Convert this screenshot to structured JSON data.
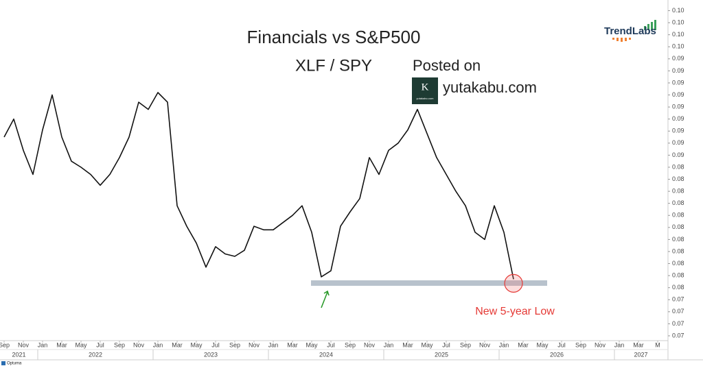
{
  "chart_data": {
    "type": "line",
    "title": "Financials vs S&P500",
    "subtitle": "XLF / SPY",
    "watermark": {
      "prefix": "Posted on",
      "site": "yutakabu.com",
      "logo_mark": "K",
      "logo_caption": "yutakabu.com"
    },
    "brand": "TrendLabs",
    "footer": "Optuma",
    "annotation": "New 5-year Low",
    "x": [
      "2021-09",
      "2021-10",
      "2021-11",
      "2021-12",
      "2022-01",
      "2022-02",
      "2022-03",
      "2022-04",
      "2022-05",
      "2022-06",
      "2022-07",
      "2022-08",
      "2022-09",
      "2022-10",
      "2022-11",
      "2022-12",
      "2023-01",
      "2023-02",
      "2023-03",
      "2023-04",
      "2023-05",
      "2023-06",
      "2023-07",
      "2023-08",
      "2023-09",
      "2023-10",
      "2023-11",
      "2023-12",
      "2024-01",
      "2024-02",
      "2024-03",
      "2024-04",
      "2024-05",
      "2024-06",
      "2024-07",
      "2024-08",
      "2024-09",
      "2024-10",
      "2024-11",
      "2024-12",
      "2025-01",
      "2025-02",
      "2025-03",
      "2025-04",
      "2025-05",
      "2025-06",
      "2025-07",
      "2025-08",
      "2025-09",
      "2025-10",
      "2025-11",
      "2025-12",
      "2026-01",
      "2026-02"
    ],
    "series": [
      {
        "name": "XLF / SPY",
        "color": "#111111",
        "values": [
          0.0875,
          0.089,
          0.0864,
          0.0844,
          0.0881,
          0.091,
          0.0875,
          0.0855,
          0.085,
          0.0844,
          0.0835,
          0.0844,
          0.0858,
          0.0875,
          0.0904,
          0.0898,
          0.0912,
          0.0904,
          0.0818,
          0.0801,
          0.0787,
          0.0767,
          0.0784,
          0.0778,
          0.0776,
          0.0781,
          0.0801,
          0.0798,
          0.0798,
          0.0804,
          0.081,
          0.0818,
          0.0796,
          0.0759,
          0.0764,
          0.0801,
          0.0813,
          0.0824,
          0.0858,
          0.0844,
          0.0864,
          0.087,
          0.0881,
          0.0898,
          0.0878,
          0.0858,
          0.0844,
          0.083,
          0.0818,
          0.0796,
          0.079,
          0.0818,
          0.0796,
          0.0757
        ]
      }
    ],
    "xlim": [
      "2021-09",
      "2027-06"
    ],
    "xticks": [
      {
        "value": "2021-09",
        "label": "Sep"
      },
      {
        "value": "2021-11",
        "label": "Nov"
      },
      {
        "value": "2022-01",
        "label": "Jan"
      },
      {
        "value": "2022-03",
        "label": "Mar"
      },
      {
        "value": "2022-05",
        "label": "May"
      },
      {
        "value": "2022-07",
        "label": "Jul"
      },
      {
        "value": "2022-09",
        "label": "Sep"
      },
      {
        "value": "2022-11",
        "label": "Nov"
      },
      {
        "value": "2023-01",
        "label": "Jan"
      },
      {
        "value": "2023-03",
        "label": "Mar"
      },
      {
        "value": "2023-05",
        "label": "May"
      },
      {
        "value": "2023-07",
        "label": "Jul"
      },
      {
        "value": "2023-09",
        "label": "Sep"
      },
      {
        "value": "2023-11",
        "label": "Nov"
      },
      {
        "value": "2024-01",
        "label": "Jan"
      },
      {
        "value": "2024-03",
        "label": "Mar"
      },
      {
        "value": "2024-05",
        "label": "May"
      },
      {
        "value": "2024-07",
        "label": "Jul"
      },
      {
        "value": "2024-09",
        "label": "Sep"
      },
      {
        "value": "2024-11",
        "label": "Nov"
      },
      {
        "value": "2025-01",
        "label": "Jan"
      },
      {
        "value": "2025-03",
        "label": "Mar"
      },
      {
        "value": "2025-05",
        "label": "May"
      },
      {
        "value": "2025-07",
        "label": "Jul"
      },
      {
        "value": "2025-09",
        "label": "Sep"
      },
      {
        "value": "2025-11",
        "label": "Nov"
      },
      {
        "value": "2026-01",
        "label": "Jan"
      },
      {
        "value": "2026-03",
        "label": "Mar"
      },
      {
        "value": "2026-05",
        "label": "May"
      },
      {
        "value": "2026-07",
        "label": "Jul"
      },
      {
        "value": "2026-09",
        "label": "Sep"
      },
      {
        "value": "2026-11",
        "label": "Nov"
      },
      {
        "value": "2027-01",
        "label": "Jan"
      },
      {
        "value": "2027-03",
        "label": "Mar"
      },
      {
        "value": "2027-05",
        "label": "M"
      }
    ],
    "years": [
      "2021",
      "2022",
      "2023",
      "2024",
      "2025",
      "2026",
      "2027"
    ],
    "ylim": [
      0.0706,
      0.0986
    ],
    "yticks": [
      {
        "value": 0.071,
        "label": "0.07"
      },
      {
        "value": 0.072,
        "label": "0.07"
      },
      {
        "value": 0.073,
        "label": "0.07"
      },
      {
        "value": 0.074,
        "label": "0.07"
      },
      {
        "value": 0.075,
        "label": "0.08"
      },
      {
        "value": 0.076,
        "label": "0.08"
      },
      {
        "value": 0.077,
        "label": "0.08"
      },
      {
        "value": 0.078,
        "label": "0.08"
      },
      {
        "value": 0.079,
        "label": "0.08"
      },
      {
        "value": 0.08,
        "label": "0.08"
      },
      {
        "value": 0.081,
        "label": "0.08"
      },
      {
        "value": 0.082,
        "label": "0.08"
      },
      {
        "value": 0.083,
        "label": "0.08"
      },
      {
        "value": 0.084,
        "label": "0.08"
      },
      {
        "value": 0.085,
        "label": "0.08"
      },
      {
        "value": 0.086,
        "label": "0.09"
      },
      {
        "value": 0.087,
        "label": "0.09"
      },
      {
        "value": 0.088,
        "label": "0.09"
      },
      {
        "value": 0.089,
        "label": "0.09"
      },
      {
        "value": 0.09,
        "label": "0.09"
      },
      {
        "value": 0.091,
        "label": "0.09"
      },
      {
        "value": 0.092,
        "label": "0.09"
      },
      {
        "value": 0.093,
        "label": "0.09"
      },
      {
        "value": 0.094,
        "label": "0.09"
      },
      {
        "value": 0.095,
        "label": "0.10"
      },
      {
        "value": 0.096,
        "label": "0.10"
      },
      {
        "value": 0.097,
        "label": "0.10"
      },
      {
        "value": 0.098,
        "label": "0.10"
      }
    ],
    "grid": false
  }
}
